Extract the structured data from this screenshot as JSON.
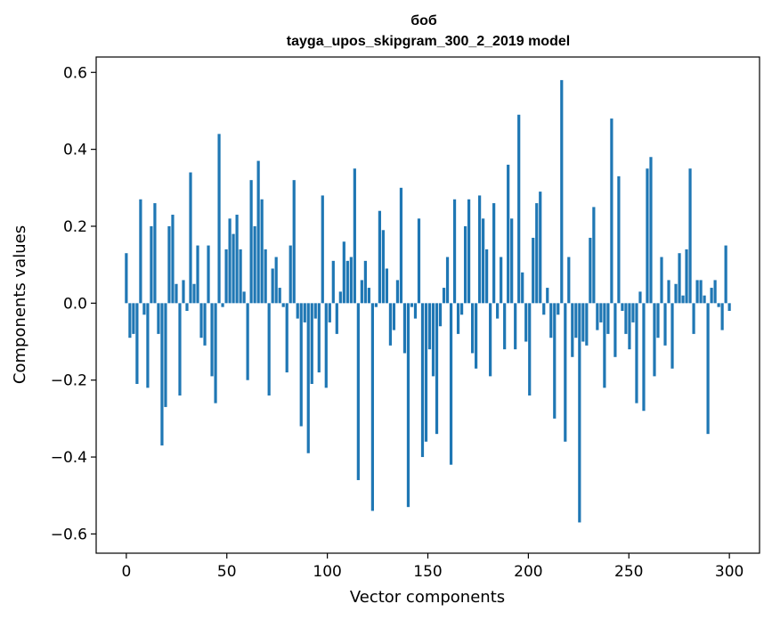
{
  "chart_data": {
    "type": "bar",
    "title": "боб",
    "subtitle": "tayga_upos_skipgram_300_2_2019 model",
    "xlabel": "Vector components",
    "ylabel": "Components values",
    "xlim": [
      -15,
      315
    ],
    "ylim": [
      -0.65,
      0.64
    ],
    "xticks": [
      0,
      50,
      100,
      150,
      200,
      250,
      300
    ],
    "yticks": [
      -0.6,
      -0.4,
      -0.2,
      0.0,
      0.2,
      0.4,
      0.6
    ],
    "xtick_labels": [
      "0",
      "50",
      "100",
      "150",
      "200",
      "250",
      "300"
    ],
    "ytick_labels": [
      "−0.6",
      "−0.4",
      "−0.2",
      "0.0",
      "0.2",
      "0.4",
      "0.6"
    ],
    "bar_color": "#1f77b4",
    "grid": false,
    "values": [
      0.13,
      -0.09,
      -0.08,
      -0.21,
      0.27,
      -0.03,
      -0.22,
      0.2,
      0.26,
      -0.08,
      -0.37,
      -0.27,
      0.2,
      0.23,
      0.05,
      -0.24,
      0.06,
      -0.02,
      0.34,
      0.05,
      0.15,
      -0.09,
      -0.11,
      0.15,
      -0.19,
      -0.26,
      0.44,
      -0.01,
      0.14,
      0.22,
      0.18,
      0.23,
      0.14,
      0.03,
      -0.2,
      0.32,
      0.2,
      0.37,
      0.27,
      0.14,
      -0.24,
      0.09,
      0.12,
      0.04,
      -0.01,
      -0.18,
      0.15,
      0.32,
      -0.04,
      -0.32,
      -0.05,
      -0.39,
      -0.21,
      -0.04,
      -0.18,
      0.28,
      -0.22,
      -0.05,
      0.11,
      -0.08,
      0.03,
      0.16,
      0.11,
      0.12,
      0.35,
      -0.46,
      0.06,
      0.11,
      0.04,
      -0.54,
      -0.01,
      0.24,
      0.19,
      0.09,
      -0.11,
      -0.07,
      0.06,
      0.3,
      -0.13,
      -0.53,
      -0.01,
      -0.04,
      0.22,
      -0.4,
      -0.36,
      -0.12,
      -0.19,
      -0.34,
      -0.06,
      0.04,
      0.12,
      -0.42,
      0.27,
      -0.08,
      -0.03,
      0.2,
      0.27,
      -0.13,
      -0.17,
      0.28,
      0.22,
      0.14,
      -0.19,
      0.26,
      -0.04,
      0.12,
      -0.12,
      0.36,
      0.22,
      -0.12,
      0.49,
      0.08,
      -0.1,
      -0.24,
      0.17,
      0.26,
      0.29,
      -0.03,
      0.04,
      -0.09,
      -0.3,
      -0.03,
      0.58,
      -0.36,
      0.12,
      -0.14,
      -0.09,
      -0.57,
      -0.1,
      -0.11,
      0.17,
      0.25,
      -0.07,
      -0.05,
      -0.22,
      -0.08,
      0.48,
      -0.14,
      0.33,
      -0.02,
      -0.08,
      -0.12,
      -0.05,
      -0.26,
      0.03,
      -0.28,
      0.35,
      0.38,
      -0.19,
      -0.09,
      0.12,
      -0.11,
      0.06,
      -0.17,
      0.05,
      0.13,
      0.02,
      0.14,
      0.35,
      -0.08,
      0.06,
      0.06,
      0.02,
      -0.34,
      0.04,
      0.06,
      -0.01,
      -0.07,
      0.15,
      -0.02
    ]
  }
}
